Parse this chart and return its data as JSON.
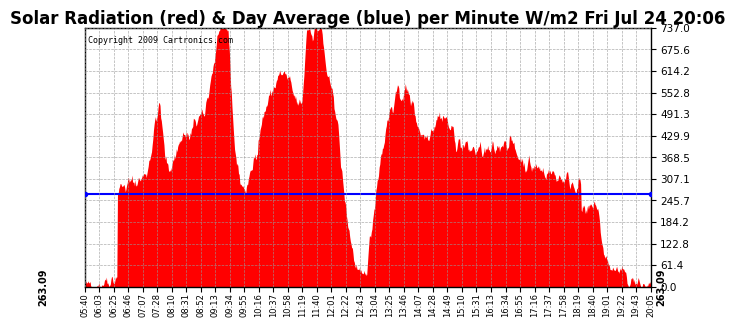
{
  "title": "Solar Radiation (red) & Day Average (blue) per Minute W/m2 Fri Jul 24 20:06",
  "copyright": "Copyright 2009 Cartronics.com",
  "ylim": [
    0,
    737.0
  ],
  "yticks": [
    0.0,
    61.4,
    122.8,
    184.2,
    245.7,
    307.1,
    368.5,
    429.9,
    491.3,
    552.8,
    614.2,
    675.6,
    737.0
  ],
  "ytick_labels": [
    "0.0",
    "61.4",
    "122.8",
    "184.2",
    "245.7",
    "307.1",
    "368.5",
    "429.9",
    "491.3",
    "552.8",
    "614.2",
    "675.6",
    "737.0"
  ],
  "day_average": 263.09,
  "avg_label": "263.09",
  "line_color": "blue",
  "fill_color": "red",
  "background_color": "white",
  "grid_color": "#999999",
  "title_fontsize": 12,
  "x_tick_labels": [
    "05:40",
    "06:03",
    "06:25",
    "06:46",
    "07:07",
    "07:28",
    "08:10",
    "08:31",
    "08:52",
    "09:13",
    "09:34",
    "09:55",
    "10:16",
    "10:37",
    "10:58",
    "11:19",
    "11:40",
    "12:01",
    "12:22",
    "12:43",
    "13:04",
    "13:25",
    "13:46",
    "14:07",
    "14:28",
    "14:49",
    "15:10",
    "15:31",
    "16:13",
    "16:34",
    "16:55",
    "17:16",
    "17:37",
    "17:58",
    "18:19",
    "18:40",
    "19:01",
    "19:22",
    "19:43",
    "20:05"
  ]
}
